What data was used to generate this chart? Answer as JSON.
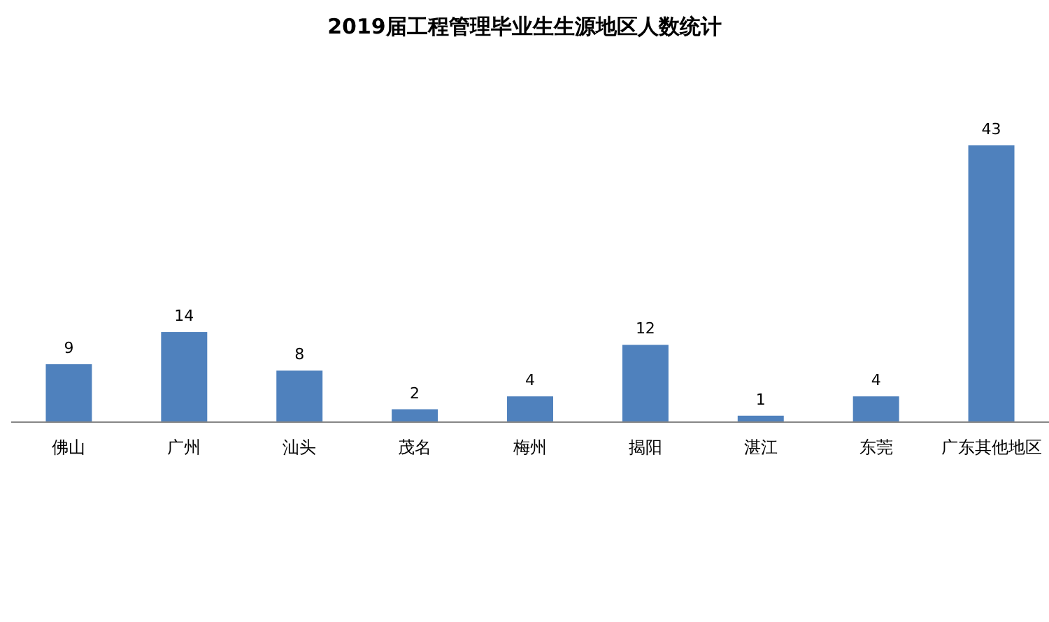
{
  "chart_data": {
    "type": "bar",
    "title": "2019届工程管理毕业生生源地区人数统计",
    "categories": [
      "佛山",
      "广州",
      "汕头",
      "茂名",
      "梅州",
      "揭阳",
      "湛江",
      "东莞",
      "广东其他地区"
    ],
    "values": [
      9,
      14,
      8,
      2,
      4,
      12,
      1,
      4,
      43
    ],
    "color": "#4f81bd",
    "data_labels": true
  }
}
